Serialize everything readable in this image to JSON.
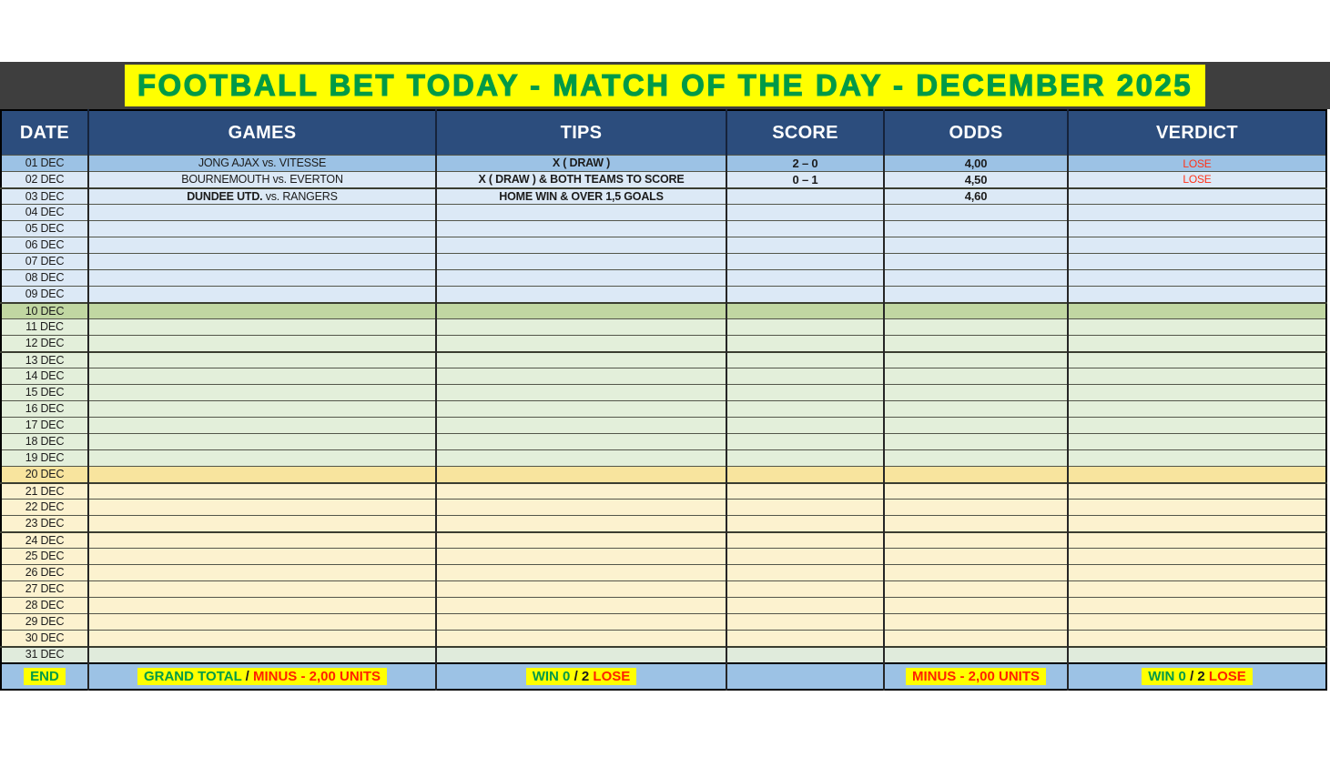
{
  "title": "FOOTBALL BET TODAY - MATCH OF THE DAY - DECEMBER 2025",
  "table": {
    "columns": [
      "DATE",
      "GAMES",
      "TIPS",
      "SCORE",
      "ODDS",
      "VERDICT"
    ],
    "rows": [
      {
        "date": "01 DEC",
        "game": [
          {
            "text": "JONG AJAX vs. VITESSE",
            "bold": false
          }
        ],
        "tip": "X ( DRAW )",
        "score": "2 – 0",
        "odds": "4,00",
        "verdict": "LOSE",
        "band": "blue",
        "thick_top": false
      },
      {
        "date": "02 DEC",
        "game": [
          {
            "text": "BOURNEMOUTH vs. EVERTON",
            "bold": false
          }
        ],
        "tip": "X ( DRAW ) & BOTH TEAMS TO SCORE",
        "score": "0 – 1",
        "odds": "4,50",
        "verdict": "LOSE",
        "band": "lightblue",
        "thick_top": false
      },
      {
        "date": "03 DEC",
        "game": [
          {
            "text": "DUNDEE UTD.",
            "bold": true
          },
          {
            "text": " vs. RANGERS",
            "bold": false
          }
        ],
        "tip": "HOME WIN & OVER 1,5 GOALS",
        "score": "",
        "odds": "4,60",
        "verdict": "",
        "band": "lightblue",
        "thick_top": true
      },
      {
        "date": "04 DEC",
        "game": [],
        "tip": "",
        "score": "",
        "odds": "",
        "verdict": "",
        "band": "lightblue",
        "thick_top": false
      },
      {
        "date": "05 DEC",
        "game": [],
        "tip": "",
        "score": "",
        "odds": "",
        "verdict": "",
        "band": "lightblue",
        "thick_top": false
      },
      {
        "date": "06 DEC",
        "game": [],
        "tip": "",
        "score": "",
        "odds": "",
        "verdict": "",
        "band": "lightblue",
        "thick_top": false
      },
      {
        "date": "07 DEC",
        "game": [],
        "tip": "",
        "score": "",
        "odds": "",
        "verdict": "",
        "band": "lightblue",
        "thick_top": false
      },
      {
        "date": "08 DEC",
        "game": [],
        "tip": "",
        "score": "",
        "odds": "",
        "verdict": "",
        "band": "lightblue",
        "thick_top": false
      },
      {
        "date": "09 DEC",
        "game": [],
        "tip": "",
        "score": "",
        "odds": "",
        "verdict": "",
        "band": "lightblue",
        "thick_top": false
      },
      {
        "date": "10 DEC",
        "game": [],
        "tip": "",
        "score": "",
        "odds": "",
        "verdict": "",
        "band": "green",
        "thick_top": true
      },
      {
        "date": "11 DEC",
        "game": [],
        "tip": "",
        "score": "",
        "odds": "",
        "verdict": "",
        "band": "lightgreen",
        "thick_top": false
      },
      {
        "date": "12 DEC",
        "game": [],
        "tip": "",
        "score": "",
        "odds": "",
        "verdict": "",
        "band": "lightgreen",
        "thick_top": false
      },
      {
        "date": "13 DEC",
        "game": [],
        "tip": "",
        "score": "",
        "odds": "",
        "verdict": "",
        "band": "lightgreen",
        "thick_top": true
      },
      {
        "date": "14 DEC",
        "game": [],
        "tip": "",
        "score": "",
        "odds": "",
        "verdict": "",
        "band": "lightgreen",
        "thick_top": false
      },
      {
        "date": "15 DEC",
        "game": [],
        "tip": "",
        "score": "",
        "odds": "",
        "verdict": "",
        "band": "lightgreen",
        "thick_top": false
      },
      {
        "date": "16 DEC",
        "game": [],
        "tip": "",
        "score": "",
        "odds": "",
        "verdict": "",
        "band": "lightgreen",
        "thick_top": false
      },
      {
        "date": "17 DEC",
        "game": [],
        "tip": "",
        "score": "",
        "odds": "",
        "verdict": "",
        "band": "lightgreen",
        "thick_top": false
      },
      {
        "date": "18 DEC",
        "game": [],
        "tip": "",
        "score": "",
        "odds": "",
        "verdict": "",
        "band": "lightgreen",
        "thick_top": false
      },
      {
        "date": "19 DEC",
        "game": [],
        "tip": "",
        "score": "",
        "odds": "",
        "verdict": "",
        "band": "lightgreen",
        "thick_top": false
      },
      {
        "date": "20 DEC",
        "game": [],
        "tip": "",
        "score": "",
        "odds": "",
        "verdict": "",
        "band": "gold",
        "thick_top": false
      },
      {
        "date": "21 DEC",
        "game": [],
        "tip": "",
        "score": "",
        "odds": "",
        "verdict": "",
        "band": "cream",
        "thick_top": true
      },
      {
        "date": "22 DEC",
        "game": [],
        "tip": "",
        "score": "",
        "odds": "",
        "verdict": "",
        "band": "cream",
        "thick_top": false
      },
      {
        "date": "23 DEC",
        "game": [],
        "tip": "",
        "score": "",
        "odds": "",
        "verdict": "",
        "band": "cream",
        "thick_top": false
      },
      {
        "date": "24 DEC",
        "game": [],
        "tip": "",
        "score": "",
        "odds": "",
        "verdict": "",
        "band": "cream",
        "thick_top": true
      },
      {
        "date": "25 DEC",
        "game": [],
        "tip": "",
        "score": "",
        "odds": "",
        "verdict": "",
        "band": "cream",
        "thick_top": false
      },
      {
        "date": "26 DEC",
        "game": [],
        "tip": "",
        "score": "",
        "odds": "",
        "verdict": "",
        "band": "cream",
        "thick_top": false
      },
      {
        "date": "27 DEC",
        "game": [],
        "tip": "",
        "score": "",
        "odds": "",
        "verdict": "",
        "band": "cream",
        "thick_top": false
      },
      {
        "date": "28 DEC",
        "game": [],
        "tip": "",
        "score": "",
        "odds": "",
        "verdict": "",
        "band": "cream",
        "thick_top": false
      },
      {
        "date": "29 DEC",
        "game": [],
        "tip": "",
        "score": "",
        "odds": "",
        "verdict": "",
        "band": "cream",
        "thick_top": false
      },
      {
        "date": "30 DEC",
        "game": [],
        "tip": "",
        "score": "",
        "odds": "",
        "verdict": "",
        "band": "cream",
        "thick_top": false
      },
      {
        "date": "31 DEC",
        "game": [],
        "tip": "",
        "score": "",
        "odds": "",
        "verdict": "",
        "band": "palegreen",
        "thick_top": true
      }
    ],
    "footer": {
      "end": {
        "segments": [
          {
            "text": "END",
            "color": "green"
          }
        ]
      },
      "games": {
        "segments": [
          {
            "text": "GRAND TOTAL ",
            "color": "green"
          },
          {
            "text": "/ ",
            "color": "dark"
          },
          {
            "text": "MINUS  - 2,00 UNITS",
            "color": "red"
          }
        ]
      },
      "tips": {
        "segments": [
          {
            "text": "WIN 0 ",
            "color": "green"
          },
          {
            "text": "/ ",
            "color": "dark"
          },
          {
            "text": "2 ",
            "color": "dark"
          },
          {
            "text": "LOSE",
            "color": "red"
          }
        ]
      },
      "score": {
        "segments": []
      },
      "odds": {
        "segments": [
          {
            "text": "MINUS  - 2,00 UNITS",
            "color": "red"
          }
        ]
      },
      "verdict": {
        "segments": [
          {
            "text": "WIN 0 ",
            "color": "green"
          },
          {
            "text": "/ ",
            "color": "dark"
          },
          {
            "text": "2 ",
            "color": "dark"
          },
          {
            "text": "LOSE",
            "color": "red"
          }
        ]
      }
    }
  },
  "colors": {
    "title_green": "#009A47",
    "highlight_yellow": "#FFFF00",
    "titlebar_dark": "#3E3E3E",
    "header_blue": "#2C4D7D",
    "band_blue": "#9CC2E5",
    "band_lightblue": "#DCE9F6",
    "band_green": "#C1D7A2",
    "band_lightgreen": "#E3EFDA",
    "band_gold": "#F8E49E",
    "band_cream": "#FCF2CF",
    "band_palegreen": "#E0EBDC",
    "lose_red": "#FF3319",
    "footer_green": "#009A47",
    "footer_red": "#FF2100",
    "footer_dark": "#1A1A1A"
  }
}
